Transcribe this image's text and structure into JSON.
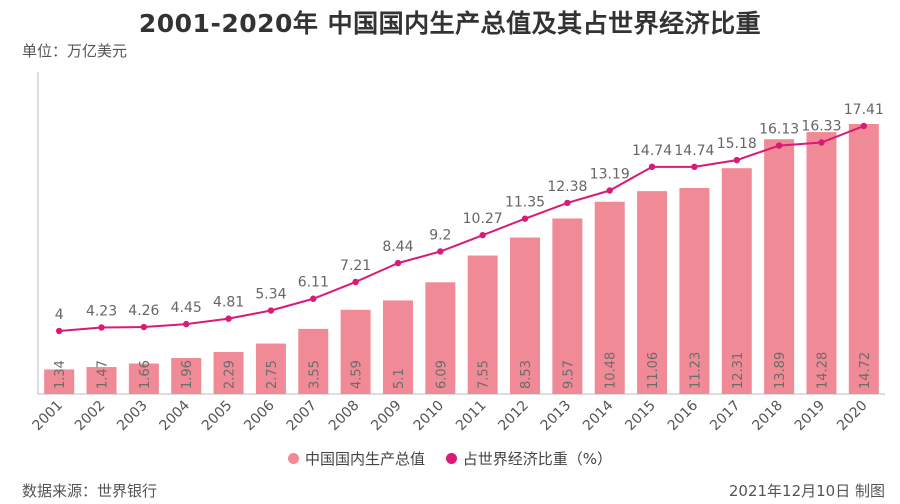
{
  "header": {
    "title": "2001-2020年 中国国内生产总值及其占世界经济比重",
    "unit": "单位：万亿美元"
  },
  "footer": {
    "source": "数据来源：世界银行",
    "date": "2021年12月10日 制图"
  },
  "colors": {
    "bar": "#f08a96",
    "line": "#d81b78",
    "axis": "#bbbbbb",
    "text": "#555555"
  },
  "chart_data": {
    "type": "bar",
    "title": "2001-2020年 中国国内生产总值及其占世界经济比重",
    "ylabel": "单位：万亿美元",
    "categories": [
      "2001",
      "2002",
      "2003",
      "2004",
      "2005",
      "2006",
      "2007",
      "2008",
      "2009",
      "2010",
      "2011",
      "2012",
      "2013",
      "2014",
      "2015",
      "2016",
      "2017",
      "2018",
      "2019",
      "2020"
    ],
    "series": [
      {
        "name": "中国国内生产总值",
        "type": "bar",
        "values": [
          1.34,
          1.47,
          1.66,
          1.96,
          2.29,
          2.75,
          3.55,
          4.59,
          5.1,
          6.09,
          7.55,
          8.53,
          9.57,
          10.48,
          11.06,
          11.23,
          12.31,
          13.89,
          14.28,
          14.72
        ]
      },
      {
        "name": "占世界经济比重（%）",
        "type": "line",
        "values": [
          4,
          4.23,
          4.26,
          4.45,
          4.81,
          5.34,
          6.11,
          7.21,
          8.44,
          9.2,
          10.27,
          11.35,
          12.38,
          13.19,
          14.74,
          14.74,
          15.18,
          16.13,
          16.33,
          17.41
        ]
      }
    ],
    "bar_ylim": [
      0,
      14.72
    ],
    "line_ylim": [
      4,
      17.41
    ],
    "legend_position": "bottom"
  }
}
